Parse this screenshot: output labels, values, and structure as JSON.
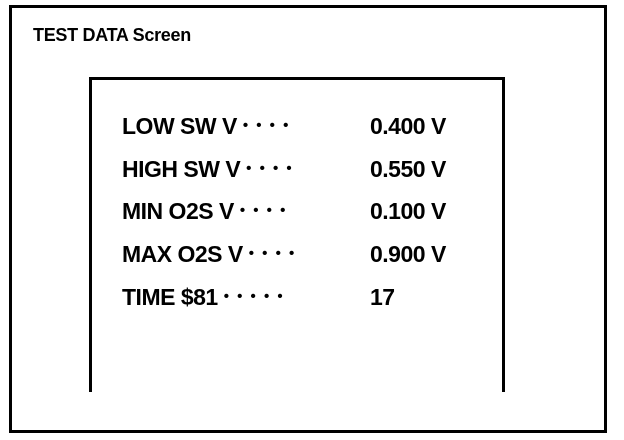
{
  "screen_title": "TEST DATA Screen",
  "rows": [
    {
      "label": "LOW SW V",
      "dots": "• • • •",
      "value": "0.400 V"
    },
    {
      "label": "HIGH SW V",
      "dots": "• • • •",
      "value": "0.550 V"
    },
    {
      "label": "MIN O2S V",
      "dots": "• • • •",
      "value": "0.100 V"
    },
    {
      "label": "MAX O2S V",
      "dots": "• • • •",
      "value": "0.900 V"
    },
    {
      "label": "TIME $81",
      "dots": "• • • • •",
      "value": "17"
    }
  ]
}
